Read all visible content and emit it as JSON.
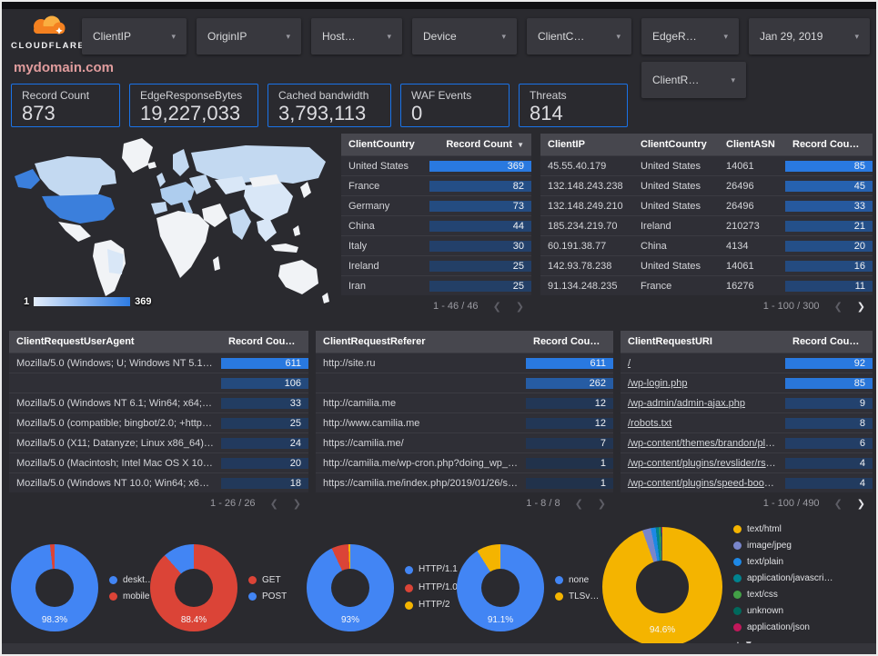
{
  "brand": {
    "name": "CLOUDFLARE"
  },
  "header": {
    "filters": [
      "ClientIP",
      "OriginIP",
      "Host…",
      "Device",
      "ClientC…",
      "EdgeR…"
    ],
    "date_filter": "Jan 29, 2019",
    "filter_row2": "ClientR…"
  },
  "page_title": "mydomain.com",
  "icons": {
    "caret_down": "▾",
    "chev_left": "❮",
    "chev_right": "❯",
    "sort_up": "▲",
    "sort_down": "▼"
  },
  "scorecards": [
    {
      "label": "Record Count",
      "value": "873"
    },
    {
      "label": "EdgeResponseBytes",
      "value": "19,227,033"
    },
    {
      "label": "Cached bandwidth",
      "value": "3,793,113"
    },
    {
      "label": "WAF Events",
      "value": "0"
    },
    {
      "label": "Threats",
      "value": "814"
    }
  ],
  "map": {
    "legend_min": "1",
    "legend_max": "369",
    "colors": {
      "lowest": "#e3edfb",
      "highest": "#2e7ce4",
      "top_country": "#3b7fdc"
    }
  },
  "heat_colors": {
    "low": "#213048",
    "high": "#2979e0"
  },
  "tables": {
    "client_country": {
      "columns": [
        "ClientCountry",
        "Record Count"
      ],
      "rows": [
        [
          "United States",
          369
        ],
        [
          "France",
          82
        ],
        [
          "Germany",
          73
        ],
        [
          "China",
          44
        ],
        [
          "Italy",
          30
        ],
        [
          "Ireland",
          25
        ],
        [
          "Iran",
          25
        ]
      ],
      "pagination": {
        "text": "1 - 46 / 46",
        "prev_enabled": false,
        "next_enabled": false
      }
    },
    "client_ip": {
      "columns": [
        "ClientIP",
        "ClientCountry",
        "ClientASN",
        "Record Count"
      ],
      "rows": [
        [
          "45.55.40.179",
          "United States",
          "14061",
          85
        ],
        [
          "132.148.243.238",
          "United States",
          "26496",
          45
        ],
        [
          "132.148.249.210",
          "United States",
          "26496",
          33
        ],
        [
          "185.234.219.70",
          "Ireland",
          "210273",
          21
        ],
        [
          "60.191.38.77",
          "China",
          "4134",
          20
        ],
        [
          "142.93.78.238",
          "United States",
          "14061",
          16
        ],
        [
          "91.134.248.235",
          "France",
          "16276",
          11
        ]
      ],
      "pagination": {
        "text": "1 - 100 / 300",
        "prev_enabled": false,
        "next_enabled": true
      }
    },
    "user_agent": {
      "columns": [
        "ClientRequestUserAgent",
        "Record Count"
      ],
      "rows": [
        [
          "Mozilla/5.0 (Windows; U; Windows NT 5.1; en-U…",
          611
        ],
        [
          "",
          106
        ],
        [
          "Mozilla/5.0 (Windows NT 6.1; Win64; x64; rv:64…",
          33
        ],
        [
          "Mozilla/5.0 (compatible; bingbot/2.0; +http://w…",
          25
        ],
        [
          "Mozilla/5.0 (X11; Datanyze; Linux x86_64) Appl…",
          24
        ],
        [
          "Mozilla/5.0 (Macintosh; Intel Mac OS X 10.11; r…",
          20
        ],
        [
          "Mozilla/5.0 (Windows NT 10.0; Win64; x64) App…",
          18
        ]
      ],
      "pagination": {
        "text": "1 - 26 / 26",
        "prev_enabled": false,
        "next_enabled": false
      }
    },
    "referer": {
      "columns": [
        "ClientRequestReferer",
        "Record Count"
      ],
      "rows": [
        [
          "http://site.ru",
          611
        ],
        [
          "",
          262
        ],
        [
          "http://camilia.me",
          12
        ],
        [
          "http://www.camilia.me",
          12
        ],
        [
          "https://camilia.me/",
          7
        ],
        [
          "http://camilia.me/wp-cron.php?doing_wp_cron…",
          1
        ],
        [
          "https://camilia.me/index.php/2019/01/26/stor…",
          1
        ]
      ],
      "pagination": {
        "text": "1 - 8 / 8",
        "prev_enabled": false,
        "next_enabled": false
      }
    },
    "request_uri": {
      "columns": [
        "ClientRequestURI",
        "Record Count"
      ],
      "link_rows": true,
      "rows": [
        [
          "/",
          92
        ],
        [
          "/wp-login.php",
          85
        ],
        [
          "/wp-admin/admin-ajax.php",
          9
        ],
        [
          "/robots.txt",
          8
        ],
        [
          "/wp-content/themes/brandon/plu…",
          6
        ],
        [
          "/wp-content/plugins/revslider/rs-p…",
          4
        ],
        [
          "/wp-content/plugins/speed-booste…",
          4
        ]
      ],
      "pagination": {
        "text": "1 - 100 / 490",
        "prev_enabled": false,
        "next_enabled": true
      }
    }
  },
  "chart_data": [
    {
      "type": "pie",
      "name": "device-type",
      "center_label": "98.3%",
      "slices": [
        {
          "label": "deskt…",
          "value": 98.3,
          "color": "#4285f4"
        },
        {
          "label": "mobile",
          "value": 1.7,
          "color": "#db4437"
        }
      ]
    },
    {
      "type": "pie",
      "name": "http-method",
      "center_label": "88.4%",
      "slices": [
        {
          "label": "GET",
          "value": 88.4,
          "color": "#db4437"
        },
        {
          "label": "POST",
          "value": 11.6,
          "color": "#4285f4"
        }
      ]
    },
    {
      "type": "pie",
      "name": "http-protocol",
      "center_label": "93%",
      "slices": [
        {
          "label": "HTTP/1.1",
          "value": 93,
          "color": "#4285f4"
        },
        {
          "label": "HTTP/1.0",
          "value": 6.3,
          "color": "#db4437"
        },
        {
          "label": "HTTP/2",
          "value": 0.7,
          "color": "#f4b400"
        }
      ]
    },
    {
      "type": "pie",
      "name": "tls-version",
      "center_label": "91.1%",
      "slices": [
        {
          "label": "none",
          "value": 91.1,
          "color": "#4285f4"
        },
        {
          "label": "TLSv…",
          "value": 8.9,
          "color": "#f4b400"
        }
      ]
    },
    {
      "type": "pie",
      "name": "content-type",
      "center_label": "94.6%",
      "slices": [
        {
          "label": "text/html",
          "value": 94.6,
          "color": "#f4b400"
        },
        {
          "label": "image/jpeg",
          "value": 2.3,
          "color": "#7986cb"
        },
        {
          "label": "text/plain",
          "value": 1.3,
          "color": "#1e88e5"
        },
        {
          "label": "application/javascri…",
          "value": 0.9,
          "color": "#00838f"
        },
        {
          "label": "text/css",
          "value": 0.4,
          "color": "#43a047"
        },
        {
          "label": "unknown",
          "value": 0.3,
          "color": "#00695c"
        },
        {
          "label": "application/json",
          "value": 0.2,
          "color": "#c2185b"
        }
      ]
    }
  ]
}
